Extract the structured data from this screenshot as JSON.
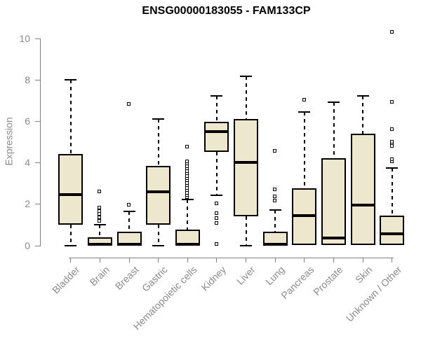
{
  "chart_data": {
    "type": "boxplot",
    "title": "ENSG00000183055 - FAM133CP",
    "ylabel": "Expression",
    "ylim": [
      0,
      10.5
    ],
    "yticks": [
      0,
      2,
      4,
      6,
      8,
      10
    ],
    "grid": false,
    "legend": "none",
    "categories": [
      "Bladder",
      "Brain",
      "Breast",
      "Gastric",
      "Hematopoietic cells",
      "Kidney",
      "Liver",
      "Lung",
      "Pancreas",
      "Prostate",
      "Skin",
      "Unknown / Other"
    ],
    "boxes": [
      {
        "category": "Bladder",
        "low": 0,
        "q1": 1.0,
        "median": 2.45,
        "q3": 4.4,
        "high": 8.0,
        "outliers": []
      },
      {
        "category": "Brain",
        "low": 0,
        "q1": 0,
        "median": 0.05,
        "q3": 0.4,
        "high": 1.0,
        "outliers": [
          1.15,
          1.35,
          1.5,
          1.65,
          1.8,
          2.6
        ]
      },
      {
        "category": "Breast",
        "low": 0,
        "q1": 0,
        "median": 0.05,
        "q3": 0.65,
        "high": 1.65,
        "outliers": [
          1.95,
          6.8
        ]
      },
      {
        "category": "Gastric",
        "low": 0,
        "q1": 1.0,
        "median": 2.6,
        "q3": 3.85,
        "high": 6.1,
        "outliers": []
      },
      {
        "category": "Hematopoietic cells",
        "low": 0,
        "q1": 0,
        "median": 0.05,
        "q3": 0.75,
        "high": 2.2,
        "outliers": [
          2.3,
          2.42,
          2.53,
          2.65,
          2.76,
          2.88,
          3.0,
          3.11,
          3.23,
          3.34,
          3.46,
          3.58,
          3.69,
          3.81,
          3.92,
          4.04,
          4.76
        ]
      },
      {
        "category": "Kidney",
        "low": 2.4,
        "q1": 4.5,
        "median": 5.5,
        "q3": 5.95,
        "high": 7.2,
        "outliers": [
          2.0,
          1.55,
          1.3,
          1.05,
          0.05
        ]
      },
      {
        "category": "Liver",
        "low": 0,
        "q1": 1.4,
        "median": 4.0,
        "q3": 6.1,
        "high": 8.15,
        "outliers": []
      },
      {
        "category": "Lung",
        "low": 0,
        "q1": 0,
        "median": 0.05,
        "q3": 0.65,
        "high": 1.7,
        "outliers": [
          2.15,
          2.35,
          2.7,
          4.55
        ]
      },
      {
        "category": "Pancreas",
        "low": 0,
        "q1": 0,
        "median": 1.45,
        "q3": 2.75,
        "high": 6.45,
        "outliers": [
          7.0
        ]
      },
      {
        "category": "Prostate",
        "low": 0,
        "q1": 0,
        "median": 0.35,
        "q3": 4.2,
        "high": 6.9,
        "outliers": []
      },
      {
        "category": "Skin",
        "low": 0,
        "q1": 0,
        "median": 1.95,
        "q3": 5.4,
        "high": 7.2,
        "outliers": []
      },
      {
        "category": "Unknown / Other",
        "low": 0,
        "q1": 0,
        "median": 0.55,
        "q3": 1.45,
        "high": 3.75,
        "outliers": [
          4.05,
          4.15,
          4.78,
          4.9,
          5.0,
          5.6,
          6.9,
          10.3
        ]
      }
    ],
    "colors": {
      "box_fill": "#ECE7CD",
      "box_border": "#000000",
      "whisker": "#000000",
      "axis": "#808080",
      "tick_labels": "#8A8A8A",
      "title": "#000000",
      "background": "#FFFFFF"
    }
  }
}
